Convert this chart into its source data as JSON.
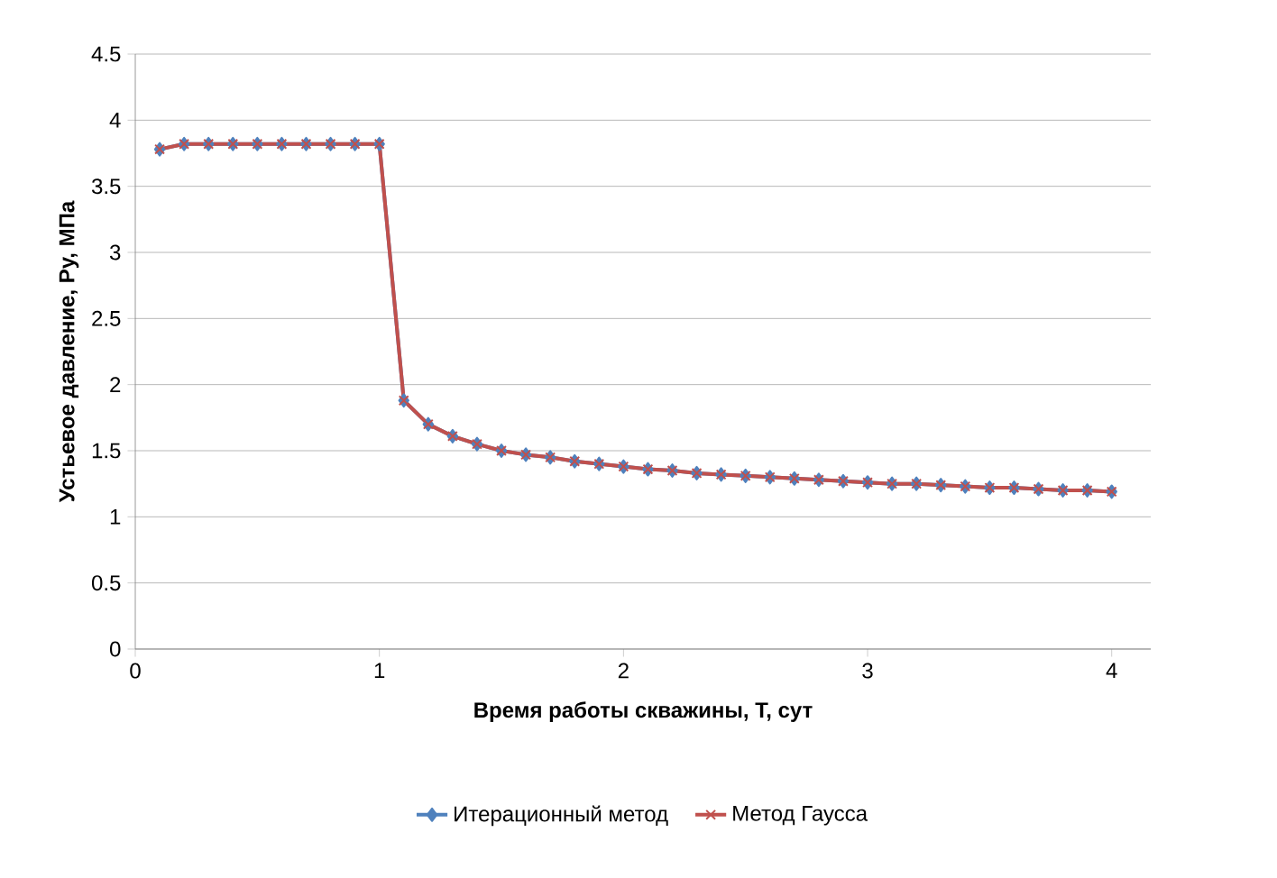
{
  "chart_data": {
    "type": "line",
    "xlabel": "Время работы скважины, T, сут",
    "ylabel": "Устьевое давление, Py, МПа",
    "x": [
      0.1,
      0.2,
      0.3,
      0.4,
      0.5,
      0.6,
      0.7,
      0.8,
      0.9,
      1.0,
      1.1,
      1.2,
      1.3,
      1.4,
      1.5,
      1.6,
      1.7,
      1.8,
      1.9,
      2.0,
      2.1,
      2.2,
      2.3,
      2.4,
      2.5,
      2.6,
      2.7,
      2.8,
      2.9,
      3.0,
      3.1,
      3.2,
      3.3,
      3.4,
      3.5,
      3.6,
      3.7,
      3.8,
      3.9,
      4.0
    ],
    "series": [
      {
        "name": "Итерационный метод",
        "color": "#4f81bd",
        "marker": "diamond",
        "values": [
          3.78,
          3.82,
          3.82,
          3.82,
          3.82,
          3.82,
          3.82,
          3.82,
          3.82,
          3.82,
          1.88,
          1.7,
          1.61,
          1.55,
          1.5,
          1.47,
          1.45,
          1.42,
          1.4,
          1.38,
          1.36,
          1.35,
          1.33,
          1.32,
          1.31,
          1.3,
          1.29,
          1.28,
          1.27,
          1.26,
          1.25,
          1.25,
          1.24,
          1.23,
          1.22,
          1.22,
          1.21,
          1.2,
          1.2,
          1.19
        ]
      },
      {
        "name": "Метод Гаусса",
        "color": "#c0504d",
        "marker": "cross",
        "values": [
          3.78,
          3.82,
          3.82,
          3.82,
          3.82,
          3.82,
          3.82,
          3.82,
          3.82,
          3.82,
          1.88,
          1.7,
          1.61,
          1.55,
          1.5,
          1.47,
          1.45,
          1.42,
          1.4,
          1.38,
          1.36,
          1.35,
          1.33,
          1.32,
          1.31,
          1.3,
          1.29,
          1.28,
          1.27,
          1.26,
          1.25,
          1.25,
          1.24,
          1.23,
          1.22,
          1.22,
          1.21,
          1.2,
          1.2,
          1.19
        ]
      }
    ],
    "xlim": [
      0,
      4.16
    ],
    "xticks": [
      0,
      1,
      2,
      3,
      4
    ],
    "ylim": [
      0,
      4.5
    ],
    "yticks": [
      0,
      0.5,
      1,
      1.5,
      2,
      2.5,
      3,
      3.5,
      4,
      4.5
    ],
    "grid": "y",
    "legend": "bottom"
  }
}
